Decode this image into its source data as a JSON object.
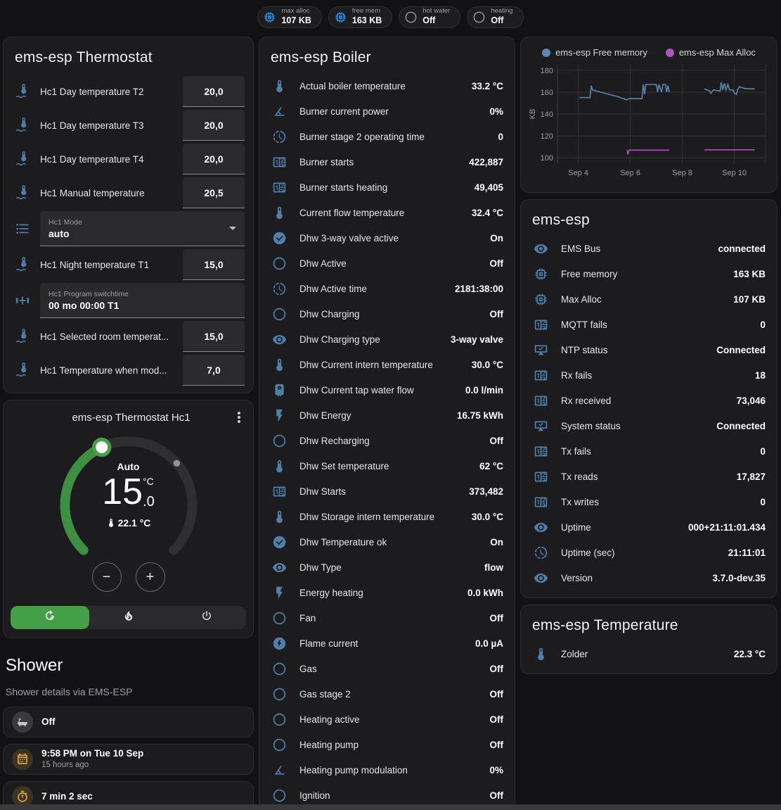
{
  "colors": {
    "icon_blue": "#4d7fa8",
    "badge_blue": "#2196f3",
    "green": "#43a047",
    "amber": "#edb440",
    "free_memory_line": "#5a87ad",
    "max_alloc_line": "#b052c0"
  },
  "badges": [
    {
      "icon": "chip",
      "label": "max alloc",
      "value": "107 KB"
    },
    {
      "icon": "chip",
      "label": "free mem",
      "value": "163 KB"
    },
    {
      "icon": "circle",
      "label": "hot water",
      "value": "Off"
    },
    {
      "icon": "circle",
      "label": "heating",
      "value": "Off"
    }
  ],
  "thermostat_card": {
    "title": "ems-esp Thermostat",
    "rows": [
      {
        "type": "number",
        "icon": "thermometer-water",
        "label": "Hc1 Day temperature T2",
        "value": "20,0"
      },
      {
        "type": "number",
        "icon": "thermometer-water",
        "label": "Hc1 Day temperature T3",
        "value": "20,0"
      },
      {
        "type": "number",
        "icon": "thermometer-water",
        "label": "Hc1 Day temperature T4",
        "value": "20,0"
      },
      {
        "type": "number",
        "icon": "thermometer-water",
        "label": "Hc1 Manual temperature",
        "value": "20,5"
      },
      {
        "type": "select",
        "icon": "list",
        "label": "Hc1 Mode",
        "value": "auto"
      },
      {
        "type": "number",
        "icon": "thermometer-water",
        "label": "Hc1 Night temperature T1",
        "value": "15,0"
      },
      {
        "type": "text",
        "icon": "valve",
        "label": "Hc1 Program switchtime",
        "value": "00 mo 00:00 T1"
      },
      {
        "type": "number",
        "icon": "thermometer-water",
        "label": "Hc1 Selected room temperat...",
        "value": "15,0"
      },
      {
        "type": "number",
        "icon": "thermometer-water",
        "label": "Hc1 Temperature when mod...",
        "value": "7,0"
      }
    ]
  },
  "dial_card": {
    "title": "ems-esp Thermostat Hc1",
    "mode_label": "Auto",
    "target_int": "15",
    "target_unit": "°C",
    "target_frac": ".0",
    "current": "22.1 °C",
    "minus_label": "−",
    "plus_label": "+",
    "modes": [
      {
        "icon": "auto",
        "active": true
      },
      {
        "icon": "fire",
        "active": false
      },
      {
        "icon": "power",
        "active": false
      }
    ]
  },
  "shower": {
    "title": "Shower",
    "subtitle": "Shower details via EMS-ESP",
    "items": [
      {
        "icon": "bathtub",
        "color": "gray",
        "value": "Off"
      },
      {
        "icon": "calendar",
        "color": "amber",
        "value": "9:58 PM on Tue 10 Sep",
        "secondary": "15 hours ago"
      },
      {
        "icon": "timer",
        "color": "amber",
        "value": "7 min 2 sec"
      },
      {
        "icon": "snowflake-alert",
        "centered": true
      }
    ]
  },
  "boiler_card": {
    "title": "ems-esp Boiler",
    "rows": [
      {
        "icon": "thermometer",
        "label": "Actual boiler temperature",
        "value": "33.2 °C"
      },
      {
        "icon": "angle",
        "label": "Burner current power",
        "value": "0%"
      },
      {
        "icon": "clock",
        "label": "Burner stage 2 operating time",
        "value": "0"
      },
      {
        "icon": "counter",
        "label": "Burner starts",
        "value": "422,887"
      },
      {
        "icon": "counter",
        "label": "Burner starts heating",
        "value": "49,405"
      },
      {
        "icon": "thermometer",
        "label": "Current flow temperature",
        "value": "32.4 °C"
      },
      {
        "icon": "check-circle",
        "label": "Dhw 3-way valve active",
        "value": "On"
      },
      {
        "icon": "circle-outline",
        "label": "Dhw Active",
        "value": "Off"
      },
      {
        "icon": "clock",
        "label": "Dhw Active time",
        "value": "2181:38:00"
      },
      {
        "icon": "circle-outline",
        "label": "Dhw Charging",
        "value": "Off"
      },
      {
        "icon": "eye",
        "label": "Dhw Charging type",
        "value": "3-way valve"
      },
      {
        "icon": "thermometer",
        "label": "Dhw Current intern temperature",
        "value": "30.0 °C"
      },
      {
        "icon": "water-boiler",
        "label": "Dhw Current tap water flow",
        "value": "0.0 l/min"
      },
      {
        "icon": "flash",
        "label": "Dhw Energy",
        "value": "16.75 kWh"
      },
      {
        "icon": "circle-outline",
        "label": "Dhw Recharging",
        "value": "Off"
      },
      {
        "icon": "thermometer",
        "label": "Dhw Set temperature",
        "value": "62 °C"
      },
      {
        "icon": "counter",
        "label": "Dhw Starts",
        "value": "373,482"
      },
      {
        "icon": "thermometer",
        "label": "Dhw Storage intern temperature",
        "value": "30.0 °C"
      },
      {
        "icon": "check-circle",
        "label": "Dhw Temperature ok",
        "value": "On"
      },
      {
        "icon": "eye",
        "label": "Dhw Type",
        "value": "flow"
      },
      {
        "icon": "flash",
        "label": "Energy heating",
        "value": "0.0 kWh"
      },
      {
        "icon": "circle-outline",
        "label": "Fan",
        "value": "Off"
      },
      {
        "icon": "flash-circle",
        "label": "Flame current",
        "value": "0.0 µA"
      },
      {
        "icon": "circle-outline",
        "label": "Gas",
        "value": "Off"
      },
      {
        "icon": "circle-outline",
        "label": "Gas stage 2",
        "value": "Off"
      },
      {
        "icon": "circle-outline",
        "label": "Heating active",
        "value": "Off"
      },
      {
        "icon": "circle-outline",
        "label": "Heating pump",
        "value": "Off"
      },
      {
        "icon": "angle",
        "label": "Heating pump modulation",
        "value": "0%"
      },
      {
        "icon": "circle-outline",
        "label": "Ignition",
        "value": "Off"
      }
    ]
  },
  "chart_data": {
    "type": "line",
    "title": "",
    "xlabel": "",
    "ylabel": "KB",
    "grid": true,
    "legend_position": "top",
    "xlim": [
      3.2,
      11.2
    ],
    "ylim": [
      95,
      185
    ],
    "yticks": [
      100,
      120,
      140,
      160,
      180
    ],
    "xticks": [
      {
        "x": 4,
        "label": "Sep 4"
      },
      {
        "x": 6,
        "label": "Sep 6"
      },
      {
        "x": 8,
        "label": "Sep 8"
      },
      {
        "x": 10,
        "label": "Sep 10"
      }
    ],
    "series": [
      {
        "name": "ems-esp Free memory",
        "color": "#5a87ad",
        "points": [
          [
            4.05,
            155
          ],
          [
            4.45,
            155
          ],
          [
            4.5,
            166
          ],
          [
            4.55,
            162
          ],
          [
            5.0,
            159
          ],
          [
            5.5,
            156
          ],
          [
            5.85,
            153
          ],
          [
            5.95,
            154
          ],
          [
            6.45,
            154
          ],
          [
            6.5,
            167
          ],
          [
            6.55,
            158
          ],
          [
            6.6,
            167
          ],
          [
            7.0,
            167
          ],
          [
            7.05,
            160
          ],
          [
            7.1,
            167
          ],
          [
            7.2,
            160
          ],
          [
            7.25,
            167
          ],
          [
            7.35,
            167
          ],
          [
            7.4,
            160
          ],
          [
            7.45,
            166
          ],
          [
            7.5,
            160
          ],
          null,
          [
            8.85,
            163
          ],
          [
            8.95,
            162
          ],
          [
            9.05,
            161
          ],
          [
            9.1,
            159
          ],
          [
            9.2,
            162
          ],
          [
            9.45,
            161
          ],
          [
            9.5,
            169
          ],
          [
            9.55,
            162
          ],
          [
            9.62,
            168
          ],
          [
            9.68,
            162
          ],
          [
            9.75,
            167
          ],
          [
            9.82,
            162
          ],
          [
            9.95,
            162
          ],
          [
            10.0,
            159
          ],
          [
            10.08,
            158
          ],
          [
            10.12,
            162
          ],
          [
            10.2,
            165
          ],
          [
            10.3,
            164
          ],
          [
            10.45,
            163
          ],
          [
            10.78,
            163
          ]
        ]
      },
      {
        "name": "ems-esp Max Alloc",
        "color": "#b052c0",
        "points": [
          [
            5.88,
            107
          ],
          [
            5.9,
            103
          ],
          [
            5.95,
            107
          ],
          [
            7.5,
            107
          ],
          null,
          [
            8.85,
            107.3
          ],
          [
            10.78,
            107.3
          ]
        ]
      }
    ]
  },
  "emsesp_card": {
    "title": "ems-esp",
    "rows": [
      {
        "icon": "eye",
        "label": "EMS Bus",
        "value": "connected"
      },
      {
        "icon": "chip",
        "label": "Free memory",
        "value": "163 KB"
      },
      {
        "icon": "chip",
        "label": "Max Alloc",
        "value": "107 KB"
      },
      {
        "icon": "counter",
        "label": "MQTT fails",
        "value": "0"
      },
      {
        "icon": "monitor",
        "label": "NTP status",
        "value": "Connected"
      },
      {
        "icon": "counter",
        "label": "Rx fails",
        "value": "18"
      },
      {
        "icon": "counter",
        "label": "Rx received",
        "value": "73,046"
      },
      {
        "icon": "monitor",
        "label": "System status",
        "value": "Connected"
      },
      {
        "icon": "counter",
        "label": "Tx fails",
        "value": "0"
      },
      {
        "icon": "counter",
        "label": "Tx reads",
        "value": "17,827"
      },
      {
        "icon": "counter",
        "label": "Tx writes",
        "value": "0"
      },
      {
        "icon": "eye",
        "label": "Uptime",
        "value": "000+21:11:01.434"
      },
      {
        "icon": "clock",
        "label": "Uptime (sec)",
        "value": "21:11:01"
      },
      {
        "icon": "eye",
        "label": "Version",
        "value": "3.7.0-dev.35"
      }
    ]
  },
  "temperature_card": {
    "title": "ems-esp Temperature",
    "rows": [
      {
        "icon": "thermometer",
        "label": "Zolder",
        "value": "22.3 °C"
      }
    ]
  }
}
